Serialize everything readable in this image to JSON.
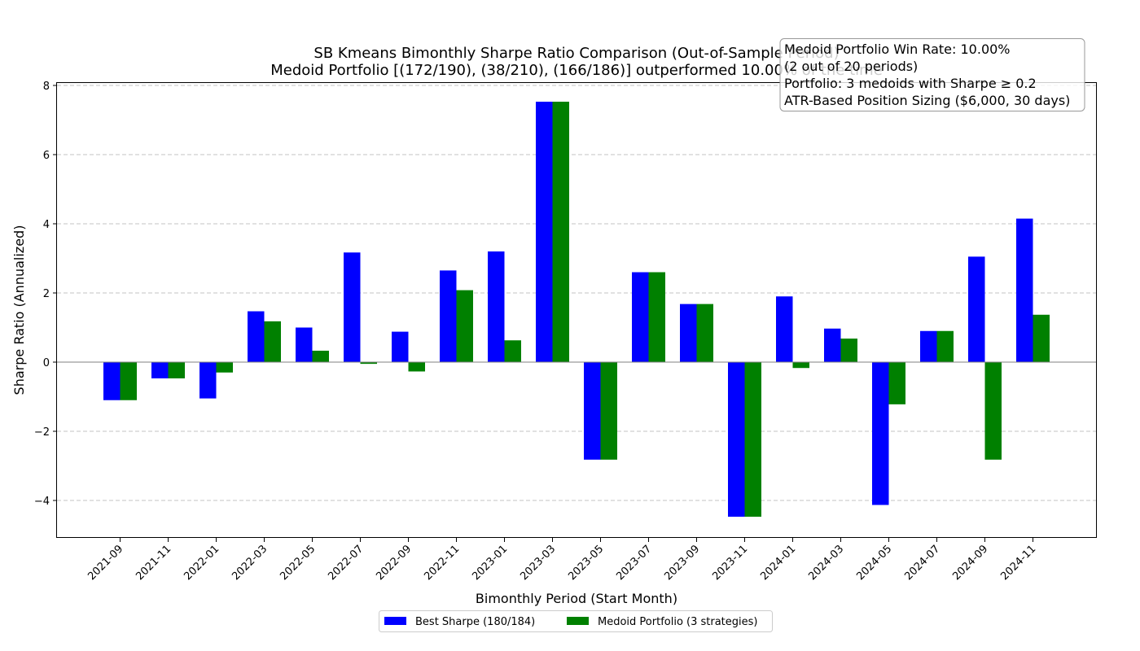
{
  "chart_data": {
    "type": "bar",
    "title": "SB Kmeans Bimonthly Sharpe Ratio Comparison (Out-of-Sample Period)",
    "subtitle": "Medoid Portfolio [(172/190), (38/210), (166/186)] outperformed 10.00% of the time",
    "xlabel": "Bimonthly Period (Start Month)",
    "ylabel": "Sharpe Ratio (Annualized)",
    "ylim": [
      -5.0,
      8.1
    ],
    "yticks": [
      -4,
      -2,
      0,
      2,
      4,
      6,
      8
    ],
    "ytick_labels": [
      "−4",
      "−2",
      "0",
      "2",
      "4",
      "6",
      "8"
    ],
    "grid": "y-dashed",
    "legend_placement": "bottom-center",
    "categories": [
      "2021-09",
      "2021-11",
      "2022-01",
      "2022-03",
      "2022-05",
      "2022-07",
      "2022-09",
      "2022-11",
      "2023-01",
      "2023-03",
      "2023-05",
      "2023-07",
      "2023-09",
      "2023-11",
      "2024-01",
      "2024-03",
      "2024-05",
      "2024-07",
      "2024-09",
      "2024-11"
    ],
    "series": [
      {
        "name": "Best Sharpe (180/184)",
        "color": "#0000ff",
        "values": [
          -1.1,
          -0.47,
          -1.05,
          1.47,
          1.0,
          3.17,
          0.88,
          2.65,
          3.2,
          7.53,
          -2.82,
          2.6,
          1.68,
          -4.47,
          1.9,
          0.97,
          -4.13,
          0.9,
          3.05,
          4.15
        ]
      },
      {
        "name": "Medoid Portfolio (3 strategies)",
        "color": "#008000",
        "values": [
          -1.1,
          -0.47,
          -0.3,
          1.18,
          0.33,
          -0.05,
          -0.27,
          2.08,
          0.63,
          7.53,
          -2.82,
          2.6,
          1.68,
          -4.47,
          -0.17,
          0.68,
          -1.22,
          0.9,
          -2.82,
          1.37
        ]
      }
    ],
    "info_box": [
      "Medoid Portfolio Win Rate: 10.00%",
      "(2 out of 20 periods)",
      "Portfolio: 3 medoids with Sharpe ≥ 0.2",
      "ATR-Based Position Sizing ($6,000, 30 days)"
    ]
  }
}
